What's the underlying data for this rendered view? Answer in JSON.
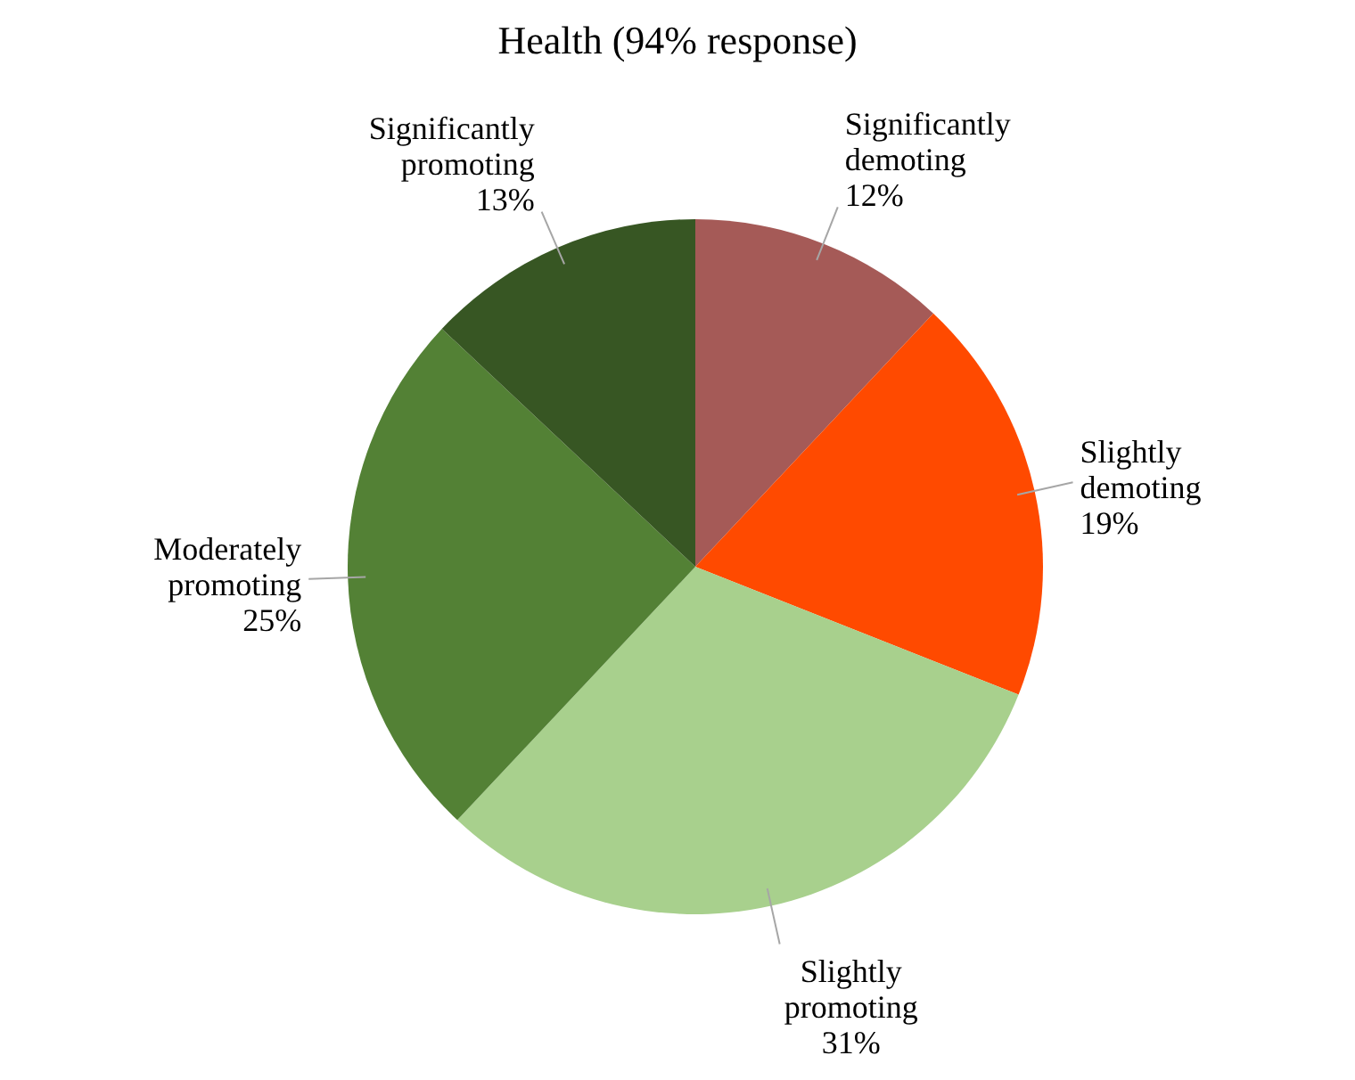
{
  "chart_data": {
    "type": "pie",
    "title": "Health (94% response)",
    "categories": [
      "Significantly demoting",
      "Slightly demoting",
      "Slightly promoting",
      "Moderately promoting",
      "Significantly promoting"
    ],
    "values": [
      12,
      19,
      31,
      25,
      13
    ],
    "value_labels": [
      "12%",
      "19%",
      "31%",
      "25%",
      "13%"
    ],
    "colors": [
      "#a55a57",
      "#ff4a00",
      "#a8d08d",
      "#538135",
      "#375623"
    ],
    "legend": false
  }
}
